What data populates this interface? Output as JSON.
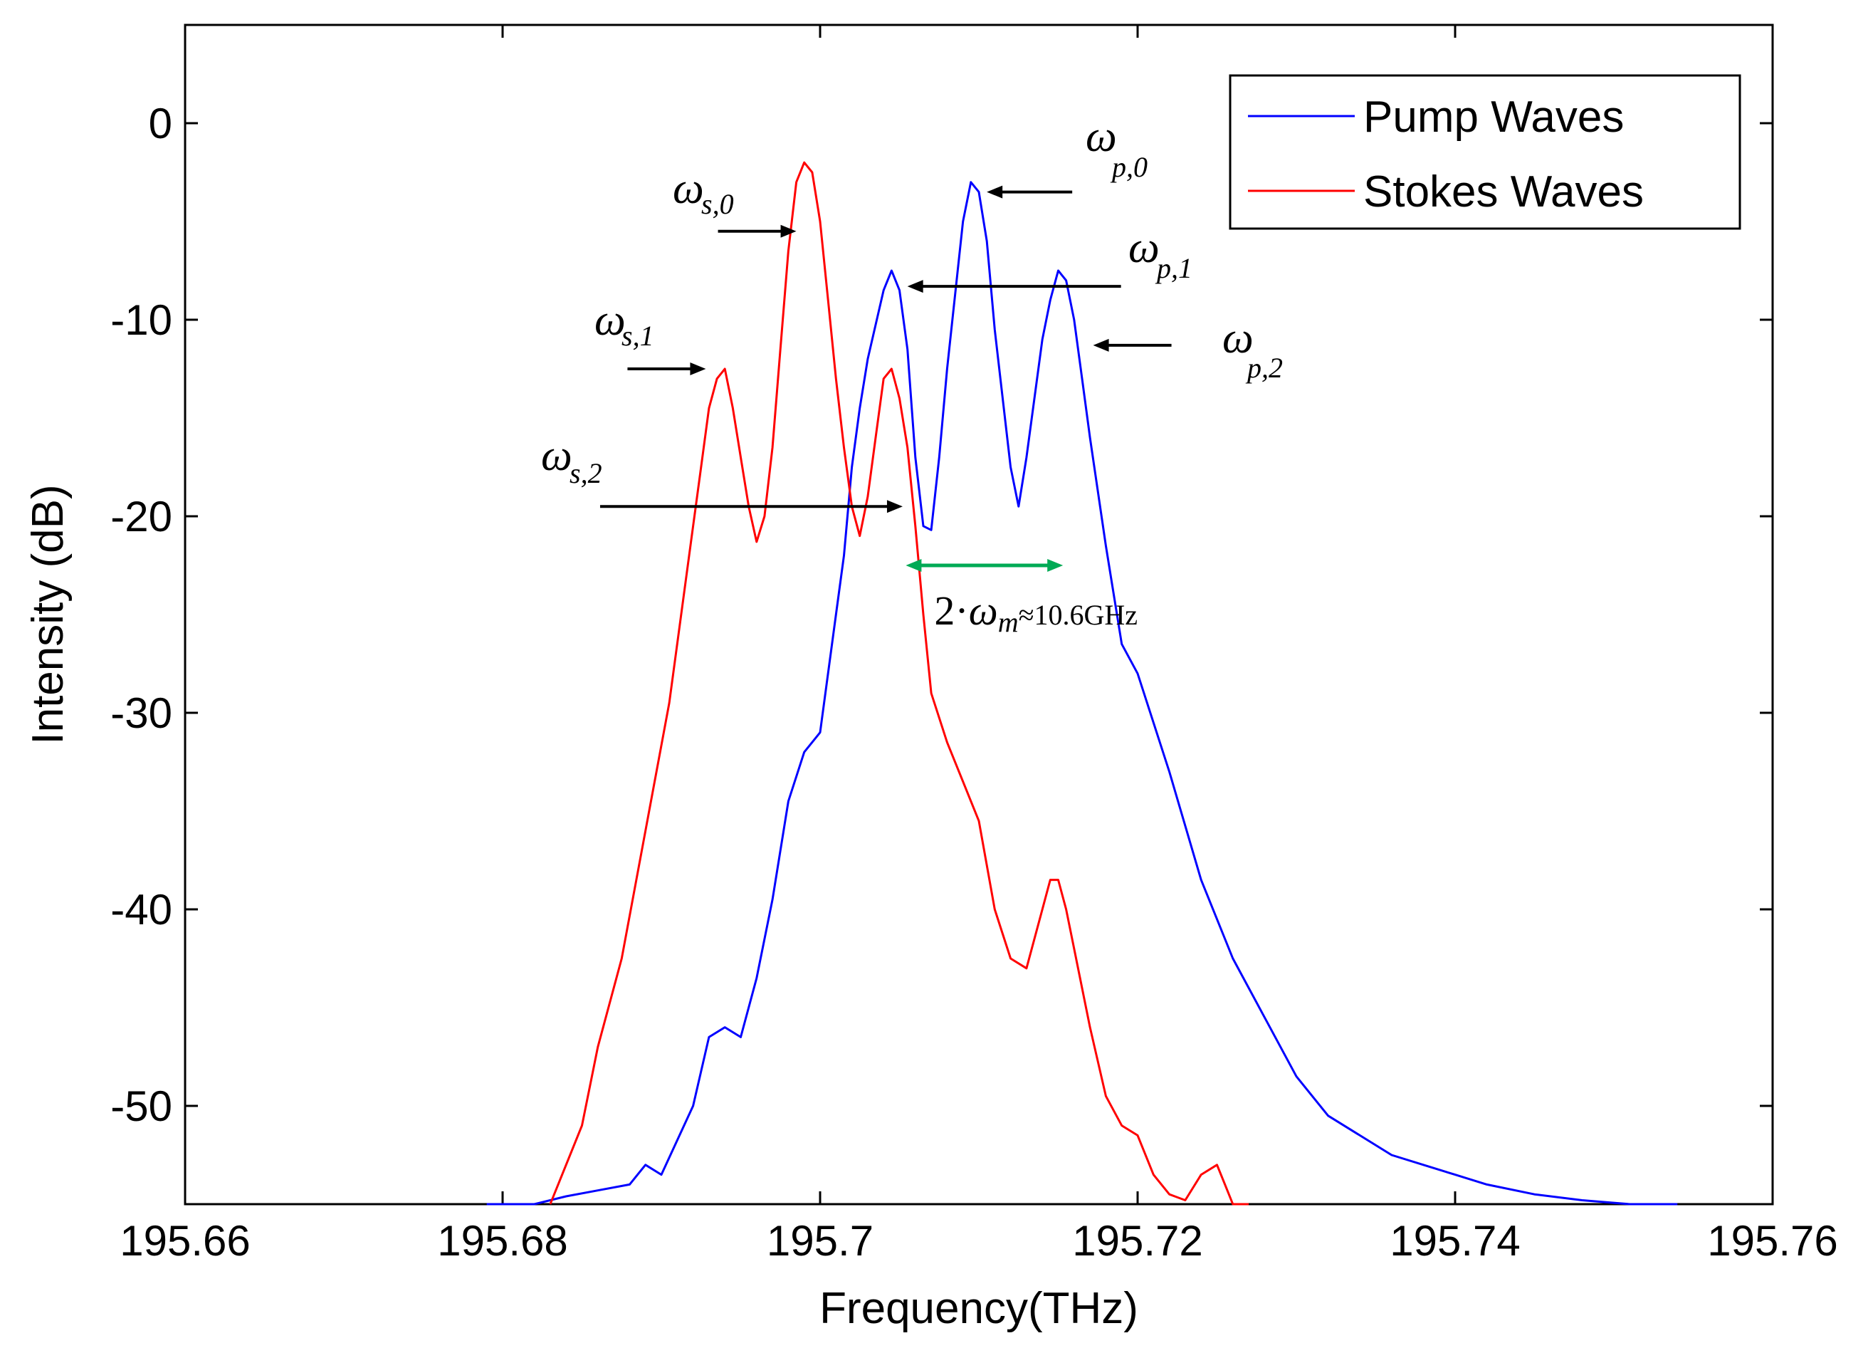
{
  "chart_data": {
    "type": "line",
    "title": "",
    "xlabel": "Frequency(THz)",
    "ylabel": "Intensity (dB)",
    "xlim": [
      195.66,
      195.76
    ],
    "ylim": [
      -55,
      5
    ],
    "xticks": [
      "195.66",
      "195.68",
      "195.7",
      "195.72",
      "195.74",
      "195.76"
    ],
    "yticks": [
      "0",
      "-10",
      "-20",
      "-30",
      "-40",
      "-50"
    ],
    "grid": false,
    "legend_position": "top-right",
    "series": [
      {
        "name": "Pump Waves",
        "color": "#0000ff",
        "x": [
          195.679,
          195.682,
          195.684,
          195.686,
          195.688,
          195.689,
          195.69,
          195.692,
          195.693,
          195.694,
          195.695,
          195.696,
          195.697,
          195.698,
          195.699,
          195.7,
          195.701,
          195.7015,
          195.702,
          195.7025,
          195.703,
          195.704,
          195.7045,
          195.705,
          195.7055,
          195.706,
          195.7065,
          195.707,
          195.7075,
          195.708,
          195.709,
          195.7095,
          195.71,
          195.7105,
          195.711,
          195.712,
          195.7125,
          195.713,
          195.714,
          195.7145,
          195.715,
          195.7155,
          195.716,
          195.7165,
          195.717,
          195.718,
          195.719,
          195.72,
          195.722,
          195.724,
          195.726,
          195.728,
          195.73,
          195.732,
          195.734,
          195.736,
          195.738,
          195.74,
          195.742,
          195.745,
          195.748,
          195.751,
          195.754
        ],
        "y": [
          -55,
          -55,
          -54.6,
          -54.3,
          -54,
          -53,
          -53.5,
          -50,
          -46.5,
          -46,
          -46.5,
          -43.5,
          -39.5,
          -34.5,
          -32,
          -31,
          -25,
          -22,
          -17.5,
          -14.5,
          -12,
          -8.5,
          -7.5,
          -8.5,
          -11.5,
          -17,
          -20.5,
          -20.7,
          -17,
          -12.5,
          -5,
          -3,
          -3.5,
          -6,
          -10.5,
          -17.5,
          -19.5,
          -17,
          -11,
          -9,
          -7.5,
          -8,
          -10,
          -13,
          -16,
          -21.5,
          -26.5,
          -28,
          -33,
          -38.5,
          -42.5,
          -45.5,
          -48.5,
          -50.5,
          -51.5,
          -52.5,
          -53,
          -53.5,
          -54,
          -54.5,
          -54.8,
          -55,
          -55
        ]
      },
      {
        "name": "Stokes Waves",
        "color": "#ff0000",
        "x": [
          195.683,
          195.684,
          195.685,
          195.686,
          195.6875,
          195.689,
          195.6905,
          195.692,
          195.6925,
          195.693,
          195.6935,
          195.694,
          195.6945,
          195.695,
          195.6955,
          195.696,
          195.6965,
          195.697,
          195.6975,
          195.698,
          195.6985,
          195.699,
          195.6995,
          195.7,
          195.7005,
          195.701,
          195.7015,
          195.702,
          195.7025,
          195.703,
          195.7035,
          195.704,
          195.7045,
          195.705,
          195.7055,
          195.706,
          195.7065,
          195.707,
          195.708,
          195.709,
          195.71,
          195.711,
          195.712,
          195.713,
          195.714,
          195.7145,
          195.715,
          195.7155,
          195.716,
          195.717,
          195.718,
          195.719,
          195.72,
          195.721,
          195.722,
          195.723,
          195.724,
          195.725,
          195.7255,
          195.726,
          195.727
        ],
        "y": [
          -55,
          -53,
          -51,
          -47,
          -42.5,
          -36,
          -29.5,
          -20.5,
          -17.5,
          -14.5,
          -13,
          -12.5,
          -14.5,
          -17,
          -19.5,
          -21.3,
          -20,
          -16.5,
          -11.5,
          -6.5,
          -3,
          -2,
          -2.5,
          -5,
          -9,
          -13,
          -16.5,
          -19.5,
          -21,
          -19,
          -16,
          -13,
          -12.5,
          -14,
          -16.5,
          -20.5,
          -25,
          -29,
          -31.5,
          -33.5,
          -35.5,
          -40,
          -42.5,
          -43,
          -40,
          -38.5,
          -38.5,
          -40,
          -42,
          -46,
          -49.5,
          -51,
          -51.5,
          -53.5,
          -54.5,
          -54.8,
          -53.5,
          -53,
          -54,
          -55,
          -55
        ]
      }
    ],
    "annotations": [
      {
        "symbol": "ω",
        "subscript": "p,0",
        "arrow_points": "left",
        "target": [
          195.7105,
          -3.5
        ]
      },
      {
        "symbol": "ω",
        "subscript": "s,0",
        "arrow_points": "right",
        "target": [
          195.6985,
          -5.5
        ]
      },
      {
        "symbol": "ω",
        "subscript": "p,1",
        "arrow_points": "left",
        "target": [
          195.7055,
          -8.3
        ]
      },
      {
        "symbol": "ω",
        "subscript": "s,1",
        "arrow_points": "right",
        "target": [
          195.6928,
          -12.5
        ]
      },
      {
        "symbol": "ω",
        "subscript": "p,2",
        "arrow_points": "left",
        "target": [
          195.7172,
          -11.3
        ]
      },
      {
        "symbol": "ω",
        "subscript": "s,2",
        "arrow_points": "right",
        "target": [
          195.7052,
          -19.5
        ]
      },
      {
        "text_prefix": "2·",
        "symbol": "ω",
        "subscript": "m",
        "text_suffix": "≈10.6GHz",
        "arrow": "double",
        "range": [
          195.7054,
          195.7153
        ],
        "y": -22.5,
        "color": "#00aa55"
      }
    ]
  }
}
